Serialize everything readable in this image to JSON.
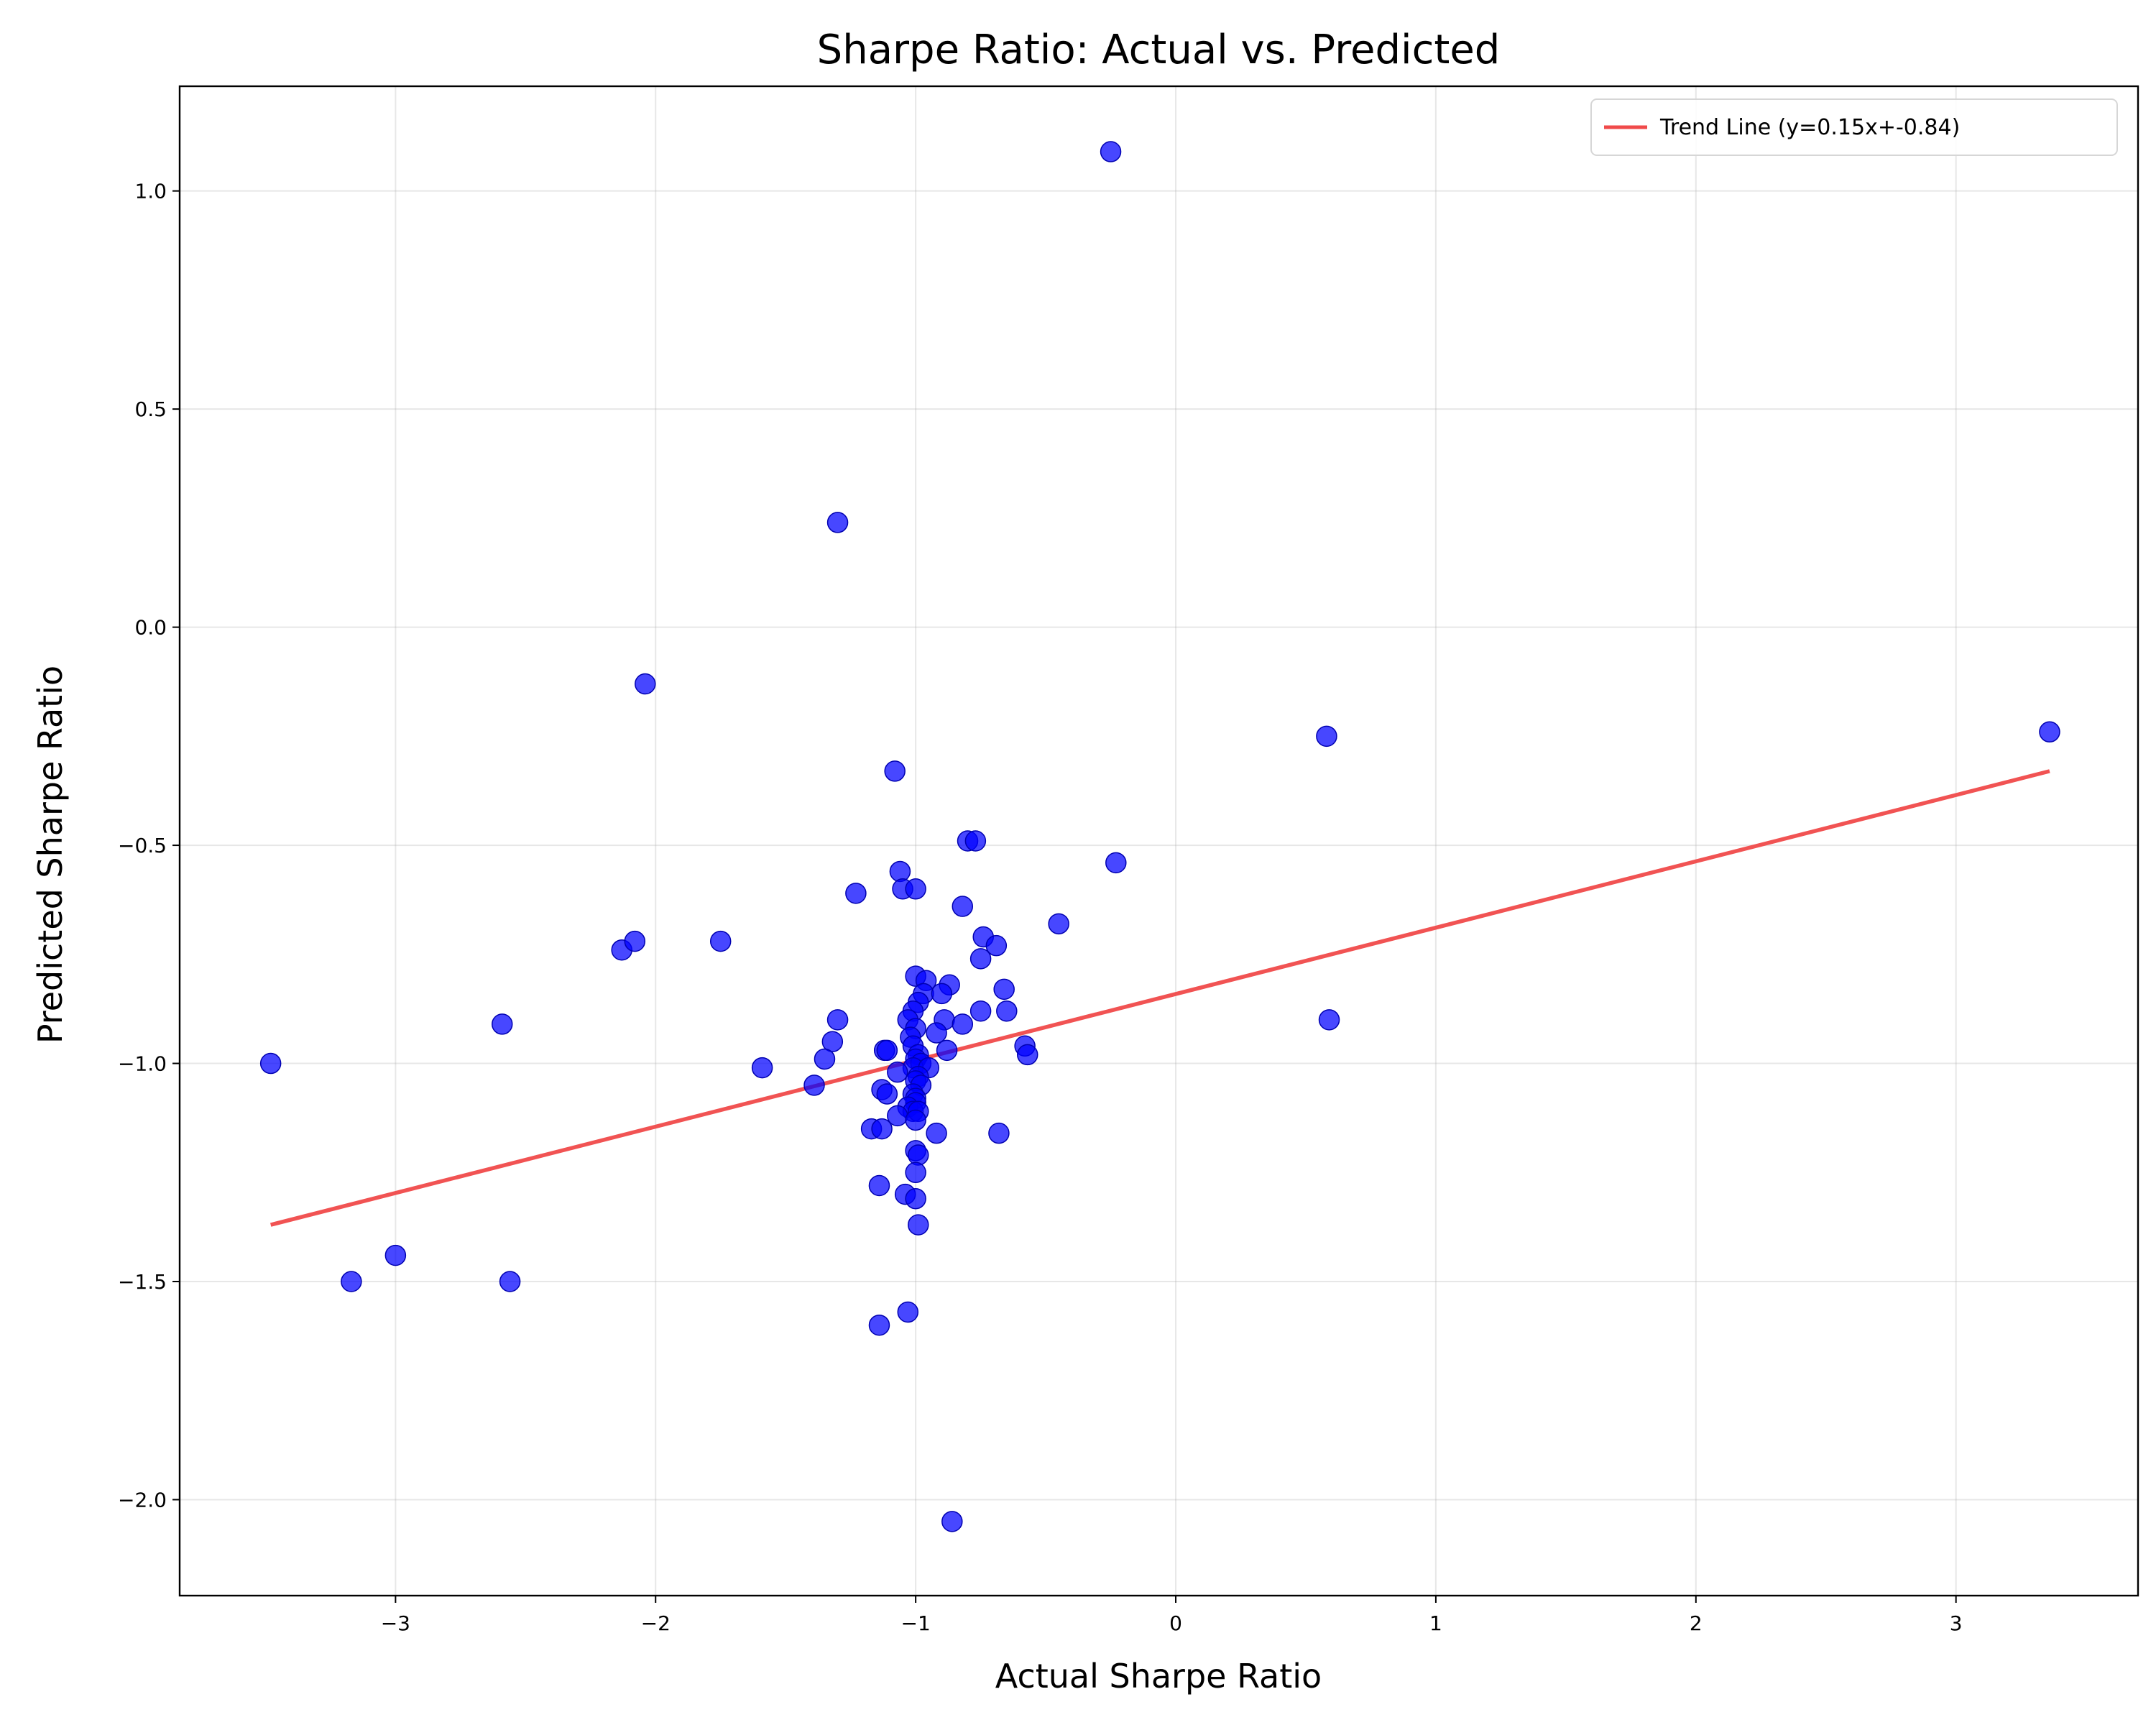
{
  "chart_data": {
    "type": "scatter",
    "title": "Sharpe Ratio: Actual vs. Predicted",
    "xlabel": "Actual Sharpe Ratio",
    "ylabel": "Predicted Sharpe Ratio",
    "xlim": [
      -3.83,
      3.7
    ],
    "ylim": [
      -2.22,
      1.24
    ],
    "xticks": [
      -3,
      -2,
      -1,
      0,
      1,
      2,
      3
    ],
    "xtick_labels": [
      "−3",
      "−2",
      "−1",
      "0",
      "1",
      "2",
      "3"
    ],
    "yticks": [
      -2.0,
      -1.5,
      -1.0,
      -0.5,
      0.0,
      0.5,
      1.0
    ],
    "ytick_labels": [
      "−2.0",
      "−1.5",
      "−1.0",
      "−0.5",
      "0.0",
      "0.5",
      "1.0"
    ],
    "grid": true,
    "legend_position": "top-right",
    "colors": {
      "points": "#0000ff",
      "trend": "#f04a4a"
    },
    "trend_line": {
      "name": "Trend Line (y=0.15x+-0.84)",
      "x": [
        -3.48,
        3.36
      ],
      "y": [
        -1.37,
        -0.33
      ]
    },
    "series": [
      {
        "points": [
          [
            -0.25,
            1.09
          ],
          [
            -1.3,
            0.24
          ],
          [
            -2.04,
            -0.13
          ],
          [
            3.36,
            -0.24
          ],
          [
            0.58,
            -0.25
          ],
          [
            -1.08,
            -0.33
          ],
          [
            -0.8,
            -0.49
          ],
          [
            -0.77,
            -0.49
          ],
          [
            -0.23,
            -0.54
          ],
          [
            -1.06,
            -0.56
          ],
          [
            -1.05,
            -0.6
          ],
          [
            -1.0,
            -0.6
          ],
          [
            -1.23,
            -0.61
          ],
          [
            -0.82,
            -0.64
          ],
          [
            -0.45,
            -0.68
          ],
          [
            -0.74,
            -0.71
          ],
          [
            -0.69,
            -0.73
          ],
          [
            -2.13,
            -0.74
          ],
          [
            -2.08,
            -0.72
          ],
          [
            -1.75,
            -0.72
          ],
          [
            -0.75,
            -0.76
          ],
          [
            -1.0,
            -0.8
          ],
          [
            -0.96,
            -0.81
          ],
          [
            -0.87,
            -0.82
          ],
          [
            -0.66,
            -0.83
          ],
          [
            -0.97,
            -0.84
          ],
          [
            -0.9,
            -0.84
          ],
          [
            -0.99,
            -0.86
          ],
          [
            -1.01,
            -0.88
          ],
          [
            -0.75,
            -0.88
          ],
          [
            -0.65,
            -0.88
          ],
          [
            -1.3,
            -0.9
          ],
          [
            -1.03,
            -0.9
          ],
          [
            -0.89,
            -0.9
          ],
          [
            0.59,
            -0.9
          ],
          [
            -2.59,
            -0.91
          ],
          [
            -0.82,
            -0.91
          ],
          [
            -1.0,
            -0.92
          ],
          [
            -0.92,
            -0.93
          ],
          [
            -1.02,
            -0.94
          ],
          [
            -1.32,
            -0.95
          ],
          [
            -0.58,
            -0.96
          ],
          [
            -1.01,
            -0.96
          ],
          [
            -1.12,
            -0.97
          ],
          [
            -1.11,
            -0.97
          ],
          [
            -0.99,
            -0.98
          ],
          [
            -0.88,
            -0.97
          ],
          [
            -0.57,
            -0.98
          ],
          [
            -1.35,
            -0.99
          ],
          [
            -1.0,
            -0.99
          ],
          [
            -3.48,
            -1.0
          ],
          [
            -0.98,
            -1.0
          ],
          [
            -1.01,
            -1.01
          ],
          [
            -1.59,
            -1.01
          ],
          [
            -0.95,
            -1.01
          ],
          [
            -1.07,
            -1.02
          ],
          [
            -0.99,
            -1.03
          ],
          [
            -1.0,
            -1.04
          ],
          [
            -0.98,
            -1.05
          ],
          [
            -1.39,
            -1.05
          ],
          [
            -1.13,
            -1.06
          ],
          [
            -1.01,
            -1.07
          ],
          [
            -1.11,
            -1.07
          ],
          [
            -1.0,
            -1.08
          ],
          [
            -1.0,
            -1.09
          ],
          [
            -1.03,
            -1.1
          ],
          [
            -1.01,
            -1.11
          ],
          [
            -0.99,
            -1.11
          ],
          [
            -1.07,
            -1.12
          ],
          [
            -1.0,
            -1.13
          ],
          [
            -1.17,
            -1.15
          ],
          [
            -1.13,
            -1.15
          ],
          [
            -0.92,
            -1.16
          ],
          [
            -0.68,
            -1.16
          ],
          [
            -1.0,
            -1.2
          ],
          [
            -0.99,
            -1.21
          ],
          [
            -1.0,
            -1.25
          ],
          [
            -1.14,
            -1.28
          ],
          [
            -1.04,
            -1.3
          ],
          [
            -1.0,
            -1.31
          ],
          [
            -0.99,
            -1.37
          ],
          [
            -3.0,
            -1.44
          ],
          [
            -3.17,
            -1.5
          ],
          [
            -2.56,
            -1.5
          ],
          [
            -1.03,
            -1.57
          ],
          [
            -1.14,
            -1.6
          ],
          [
            -0.86,
            -2.05
          ]
        ]
      }
    ]
  }
}
